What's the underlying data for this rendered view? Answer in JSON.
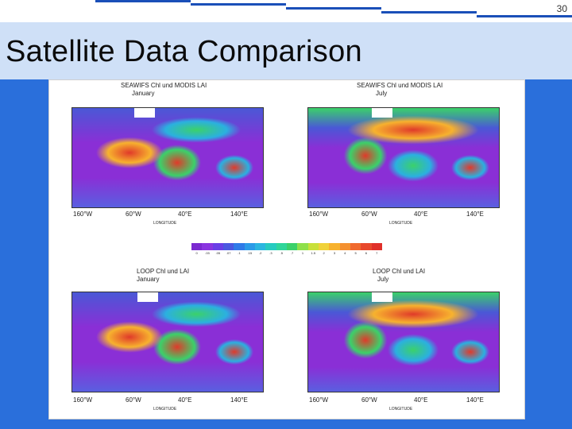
{
  "slide": {
    "number": "30",
    "title": "Satellite Data Comparison"
  },
  "figure": {
    "panels": [
      {
        "title": "SEAWIFS Chl und MODIS LAI",
        "subtitle": "January",
        "season": "january",
        "x_ticks": [
          "160°W",
          "60°W",
          "40°E",
          "140°E"
        ],
        "axis_name": "LONGITUDE"
      },
      {
        "title": "SEAWIFS Chl und MODIS LAI",
        "subtitle": "July",
        "season": "july",
        "x_ticks": [
          "160°W",
          "60°W",
          "40°E",
          "140°E"
        ],
        "axis_name": "LONGITUDE"
      },
      {
        "title": "LOOP Chl und LAI",
        "subtitle": "January",
        "season": "january",
        "x_ticks": [
          "160°W",
          "60°W",
          "40°E",
          "140°E"
        ],
        "axis_name": "LONGITUDE"
      },
      {
        "title": "LOOP Chl und LAI",
        "subtitle": "July",
        "season": "july",
        "x_ticks": [
          "160°W",
          "60°W",
          "40°E",
          "140°E"
        ],
        "axis_name": "LONGITUDE"
      }
    ],
    "colorbar": {
      "colors": [
        "#7b2ad0",
        "#8a35e0",
        "#6a3fe6",
        "#4b58e0",
        "#2f7ae8",
        "#2b9be8",
        "#2bb6e0",
        "#26cbc0",
        "#2fd69a",
        "#3bd16a",
        "#8fe04a",
        "#c8e03a",
        "#f0d23a",
        "#f7b22e",
        "#f49030",
        "#f06a2e",
        "#e8482c",
        "#e0302a"
      ],
      "labels": [
        "0",
        ".03",
        ".05",
        ".07",
        ".1",
        ".15",
        ".2",
        ".3",
        ".5",
        ".7",
        "1",
        "1.5",
        "2",
        "3",
        "4",
        "5",
        "6",
        "7"
      ]
    }
  }
}
